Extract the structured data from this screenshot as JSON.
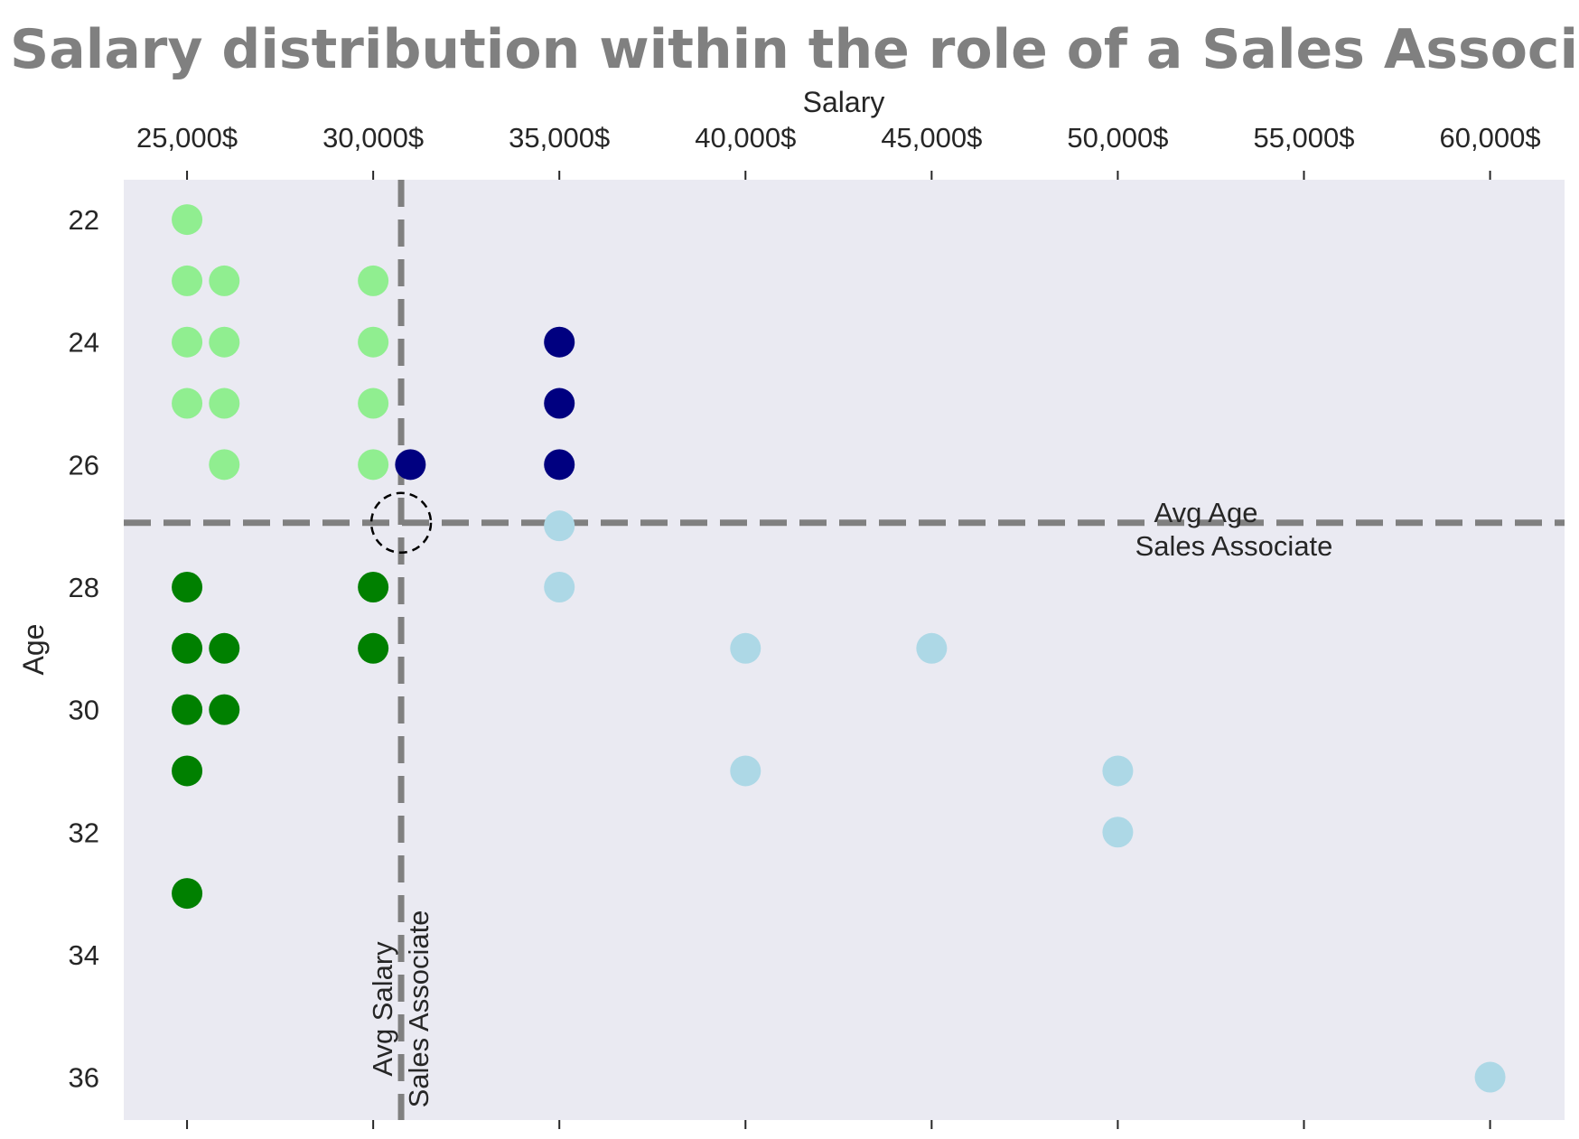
{
  "chart_data": {
    "type": "scatter",
    "title": "Salary distribution within the role of a Sales Associate",
    "xlabel": "Salary",
    "ylabel": "Age",
    "x_axis_position": "top",
    "y_axis_inverted": true,
    "xlim": [
      23300,
      62000
    ],
    "ylim": [
      21.35,
      36.7
    ],
    "x_ticks": [
      25000,
      30000,
      35000,
      40000,
      45000,
      50000,
      55000,
      60000
    ],
    "x_tick_labels": [
      "25,000$",
      "30,000$",
      "35,000$",
      "40,000$",
      "45,000$",
      "50,000$",
      "55,000$",
      "60,000$"
    ],
    "y_ticks": [
      22,
      24,
      26,
      28,
      30,
      32,
      34,
      36
    ],
    "y_tick_labels": [
      "22",
      "24",
      "26",
      "28",
      "30",
      "32",
      "34",
      "36"
    ],
    "grid": false,
    "background_color": "#eaeaf2",
    "colors": {
      "lightgreen": "#90ee90",
      "green": "#008000",
      "navy": "#000080",
      "lightblue": "#add8e6",
      "reference_line": "#808080"
    },
    "points": [
      {
        "x": 25000,
        "y": 22,
        "color": "lightgreen"
      },
      {
        "x": 25000,
        "y": 23,
        "color": "lightgreen"
      },
      {
        "x": 26000,
        "y": 23,
        "color": "lightgreen"
      },
      {
        "x": 30000,
        "y": 23,
        "color": "lightgreen"
      },
      {
        "x": 25000,
        "y": 24,
        "color": "lightgreen"
      },
      {
        "x": 26000,
        "y": 24,
        "color": "lightgreen"
      },
      {
        "x": 30000,
        "y": 24,
        "color": "lightgreen"
      },
      {
        "x": 25000,
        "y": 25,
        "color": "lightgreen"
      },
      {
        "x": 26000,
        "y": 25,
        "color": "lightgreen"
      },
      {
        "x": 30000,
        "y": 25,
        "color": "lightgreen"
      },
      {
        "x": 26000,
        "y": 26,
        "color": "lightgreen"
      },
      {
        "x": 30000,
        "y": 26,
        "color": "lightgreen"
      },
      {
        "x": 31000,
        "y": 26,
        "color": "navy"
      },
      {
        "x": 35000,
        "y": 24,
        "color": "navy"
      },
      {
        "x": 35000,
        "y": 25,
        "color": "navy"
      },
      {
        "x": 35000,
        "y": 26,
        "color": "navy"
      },
      {
        "x": 35000,
        "y": 27,
        "color": "lightblue"
      },
      {
        "x": 35000,
        "y": 28,
        "color": "lightblue"
      },
      {
        "x": 40000,
        "y": 29,
        "color": "lightblue"
      },
      {
        "x": 45000,
        "y": 29,
        "color": "lightblue"
      },
      {
        "x": 40000,
        "y": 31,
        "color": "lightblue"
      },
      {
        "x": 50000,
        "y": 31,
        "color": "lightblue"
      },
      {
        "x": 50000,
        "y": 32,
        "color": "lightblue"
      },
      {
        "x": 60000,
        "y": 36,
        "color": "lightblue"
      },
      {
        "x": 25000,
        "y": 28,
        "color": "green"
      },
      {
        "x": 30000,
        "y": 28,
        "color": "green"
      },
      {
        "x": 25000,
        "y": 29,
        "color": "green"
      },
      {
        "x": 26000,
        "y": 29,
        "color": "green"
      },
      {
        "x": 30000,
        "y": 29,
        "color": "green"
      },
      {
        "x": 25000,
        "y": 30,
        "color": "green"
      },
      {
        "x": 26000,
        "y": 30,
        "color": "green"
      },
      {
        "x": 25000,
        "y": 31,
        "color": "green"
      },
      {
        "x": 25000,
        "y": 33,
        "color": "green"
      }
    ],
    "reference_lines": {
      "avg_salary": 30750,
      "avg_age": 26.95,
      "avg_salary_label": [
        "Avg Salary",
        "Sales Associate"
      ],
      "avg_age_label": [
        "Avg Age",
        "Sales Associate"
      ]
    },
    "highlight_circle": {
      "x": 30750,
      "y": 26.95
    }
  }
}
